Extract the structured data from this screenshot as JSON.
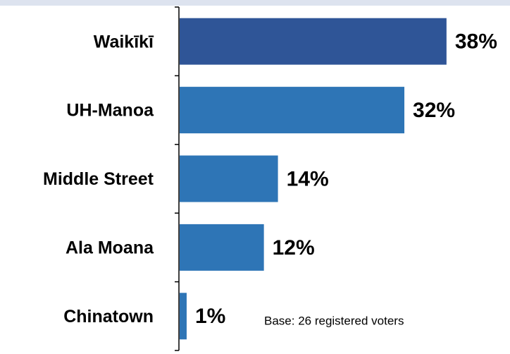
{
  "chart_data": {
    "type": "bar",
    "orientation": "horizontal",
    "categories": [
      "Waikīkī",
      "UH-Manoa",
      "Middle Street",
      "Ala Moana",
      "Chinatown"
    ],
    "values": [
      38,
      32,
      14,
      12,
      1
    ],
    "value_labels": [
      "38%",
      "32%",
      "14%",
      "12%",
      "1%"
    ],
    "colors": [
      "#2f5597",
      "#2e75b6",
      "#2e75b6",
      "#2e75b6",
      "#2e75b6"
    ],
    "annotation": "Base: 26 registered voters"
  }
}
